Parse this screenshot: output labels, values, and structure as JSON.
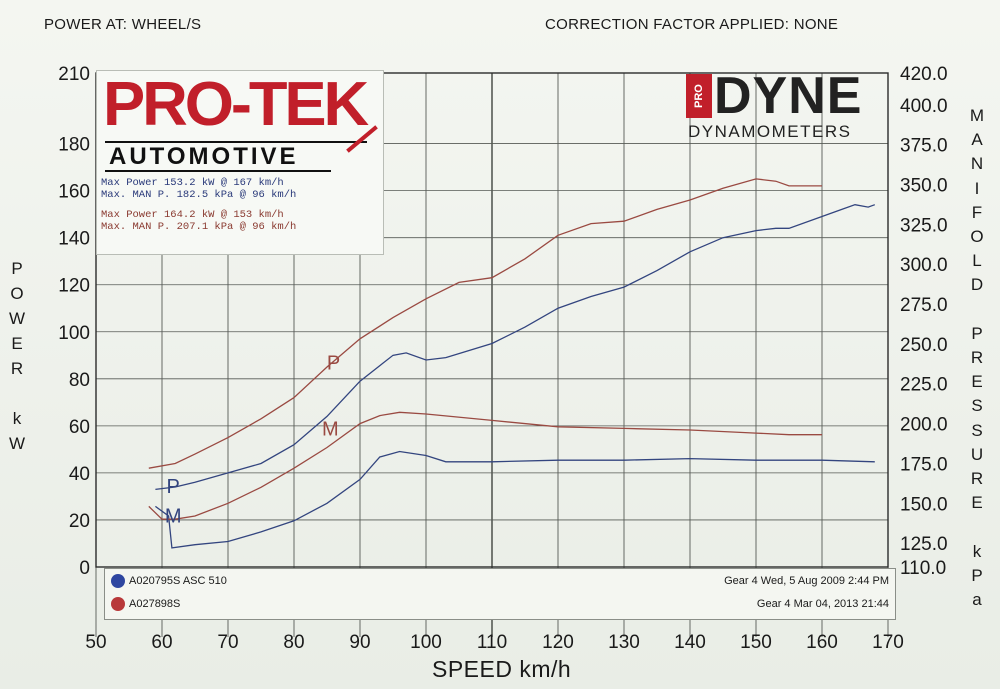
{
  "header": {
    "left": "POWER AT: WHEEL/S",
    "right": "CORRECTION FACTOR APPLIED: NONE"
  },
  "logos": {
    "protek_title": "PRO-TEK",
    "protek_sub": "AUTOMOTIVE",
    "prodyne_tag": "PRO",
    "prodyne_word": "DYNE",
    "prodyne_sub": "DYNAMOMETERS"
  },
  "stats": {
    "blue_power": "Max Power 153.2 kW @ 167 km/h",
    "blue_man": "Max. MAN P. 182.5 kPa @ 96 km/h",
    "red_power": "Max Power 164.2 kW @ 153 km/h",
    "red_man": "Max. MAN P. 207.1 kPa @ 96 km/h"
  },
  "legend": {
    "run1_name": "A020795S ASC 510",
    "run1_date": "Gear 4 Wed, 5 Aug 2009 2:44 PM",
    "run2_name": "A027898S",
    "run2_date": "Gear 4 Mar 04, 2013 21:44"
  },
  "axis_labels": {
    "left": [
      "P",
      "O",
      "W",
      "E",
      "R",
      "",
      "k",
      "W"
    ],
    "right": [
      "M",
      "A",
      "N",
      "I",
      "F",
      "O",
      "L",
      "D",
      "",
      "P",
      "R",
      "E",
      "S",
      "S",
      "U",
      "R",
      "E",
      "",
      "k",
      "P",
      "a"
    ],
    "x": "SPEED km/h"
  },
  "curve_labels": {
    "blue_p": "P",
    "blue_m": "M",
    "red_p": "P",
    "red_m": "M"
  },
  "colors": {
    "blue": "#33457f",
    "red": "#9a4a42",
    "grid": "#565a55"
  },
  "chart_data": {
    "type": "line",
    "xlabel": "SPEED km/h",
    "ylabel": "POWER kW",
    "y2label": "MANIFOLD PRESSURE kPa",
    "xlim": [
      50,
      170
    ],
    "ylim": [
      0,
      210
    ],
    "y2lim": [
      110,
      420
    ],
    "x_ticks": [
      50,
      60,
      70,
      80,
      90,
      100,
      110,
      120,
      130,
      140,
      150,
      160,
      170
    ],
    "y_ticks": [
      0,
      20,
      40,
      60,
      80,
      100,
      120,
      140,
      160,
      180,
      210
    ],
    "y2_ticks": [
      "110.0",
      "125.0",
      "150.0",
      "175.0",
      "200.0",
      "225.0",
      "250.0",
      "275.0",
      "300.0",
      "325.0",
      "350.0",
      "375.0",
      "400.0",
      "420.0"
    ],
    "y2_tick_values": [
      110,
      125,
      150,
      175,
      200,
      225,
      250,
      275,
      300,
      325,
      350,
      375,
      400,
      420
    ],
    "grid": true,
    "series": [
      {
        "name": "A020795S ASC 510",
        "measure": "power",
        "axis": "left",
        "color_key": "blue",
        "x": [
          59,
          62,
          65,
          70,
          75,
          80,
          85,
          90,
          95,
          97,
          100,
          103,
          110,
          115,
          120,
          125,
          130,
          135,
          140,
          145,
          150,
          153,
          155,
          160,
          163,
          165,
          167,
          168
        ],
        "y": [
          33,
          34,
          36,
          40,
          44,
          52,
          64,
          79,
          90,
          91,
          88,
          89,
          95,
          102,
          110,
          115,
          119,
          126,
          134,
          140,
          143,
          144,
          144,
          149,
          152,
          154,
          153,
          154
        ]
      },
      {
        "name": "A020795S ASC 510",
        "measure": "manifold pressure",
        "axis": "right",
        "color_key": "blue",
        "x": [
          59,
          61,
          61.5,
          65,
          70,
          75,
          80,
          85,
          90,
          93,
          96,
          100,
          103,
          110,
          120,
          130,
          140,
          150,
          160,
          168
        ],
        "y": [
          148,
          142,
          122,
          124,
          126,
          132,
          139,
          150,
          165,
          179,
          182.5,
          180,
          176,
          176,
          177,
          177,
          178,
          177,
          177,
          176
        ]
      },
      {
        "name": "A027898S",
        "measure": "power",
        "axis": "left",
        "color_key": "red",
        "x": [
          58,
          62,
          65,
          70,
          75,
          80,
          85,
          90,
          95,
          100,
          105,
          110,
          115,
          120,
          125,
          130,
          135,
          140,
          145,
          150,
          153,
          155,
          160
        ],
        "y": [
          42,
          44,
          48,
          55,
          63,
          72,
          85,
          97,
          106,
          114,
          121,
          123,
          131,
          141,
          146,
          147,
          152,
          156,
          161,
          165,
          164,
          162,
          162
        ]
      },
      {
        "name": "A027898S",
        "measure": "manifold pressure",
        "axis": "right",
        "color_key": "red",
        "x": [
          58,
          60,
          62,
          65,
          70,
          75,
          80,
          85,
          90,
          93,
          96,
          100,
          110,
          120,
          130,
          140,
          150,
          155,
          160
        ],
        "y": [
          148,
          140,
          140,
          142,
          150,
          160,
          172,
          185,
          200,
          205,
          207.1,
          206,
          202,
          198,
          197,
          196,
          194,
          193,
          193
        ]
      }
    ]
  }
}
